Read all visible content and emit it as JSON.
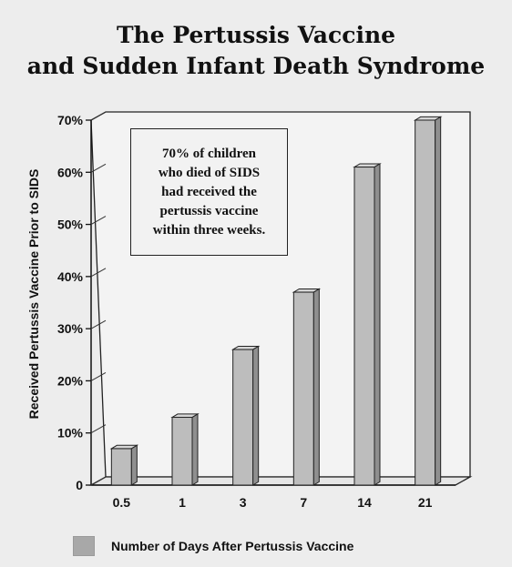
{
  "title_lines": [
    "The Pertussis Vaccine",
    "and Sudden Infant Death Syndrome"
  ],
  "annotation_lines": [
    "70% of children",
    "who died of SIDS",
    "had received the",
    "pertussis vaccine",
    "within three weeks."
  ],
  "chart_data": {
    "type": "bar",
    "title": "The Pertussis Vaccine and Sudden Infant Death Syndrome",
    "categories": [
      "0.5",
      "1",
      "3",
      "7",
      "14",
      "21"
    ],
    "series": [
      {
        "name": "Number of Days After Pertussis Vaccine",
        "values": [
          7,
          13,
          26,
          37,
          61,
          70
        ]
      }
    ],
    "ylabel": "Received Pertussis Vaccine Prior to SIDS",
    "xlabel": "",
    "yticks": [
      "0",
      "10%",
      "20%",
      "30%",
      "40%",
      "50%",
      "60%",
      "70%"
    ],
    "ylim": [
      0,
      70
    ],
    "grid": false,
    "legend": "bottom-left",
    "bar_color": "#bdbdbd"
  }
}
